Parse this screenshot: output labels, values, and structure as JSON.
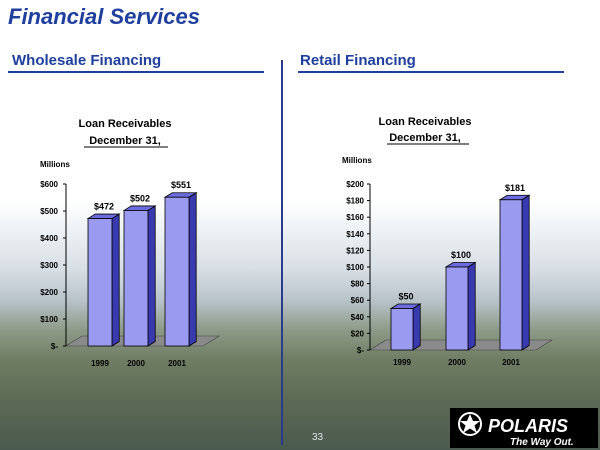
{
  "title": "Financial Services",
  "page_number": "33",
  "logo": {
    "text": "POLARIS",
    "tagline": "The Way Out."
  },
  "sections": [
    {
      "heading": "Wholesale Financing"
    },
    {
      "heading": "Retail Financing"
    }
  ],
  "colors": {
    "title": "#1f3f9f",
    "bar_front": "#9a9af0",
    "bar_side": "#3a3ab0",
    "bar_top": "#6c6ce0",
    "floor": "#8a8a8a"
  },
  "chart_data": [
    {
      "type": "bar",
      "title": "Loan Receivables",
      "subtitle": "December 31,",
      "ylabel": "Millions",
      "categories": [
        "1999",
        "2000",
        "2001"
      ],
      "values": [
        472,
        502,
        551
      ],
      "data_labels": [
        "$472",
        "$502",
        "$551"
      ],
      "ylim": [
        0,
        600
      ],
      "yticks": [
        0,
        100,
        200,
        300,
        400,
        500,
        600
      ],
      "ytick_labels": [
        "$-",
        "$100",
        "$200",
        "$300",
        "$400",
        "$500",
        "$600"
      ],
      "grid": false,
      "style": "3d"
    },
    {
      "type": "bar",
      "title": "Loan Receivables",
      "subtitle": "December 31,",
      "ylabel": "Millions",
      "categories": [
        "1999",
        "2000",
        "2001"
      ],
      "values": [
        50,
        100,
        181
      ],
      "data_labels": [
        "$50",
        "$100",
        "$181"
      ],
      "ylim": [
        0,
        200
      ],
      "yticks": [
        0,
        20,
        40,
        60,
        80,
        100,
        120,
        140,
        160,
        180,
        200
      ],
      "ytick_labels": [
        "$-",
        "$20",
        "$40",
        "$60",
        "$80",
        "$100",
        "$120",
        "$140",
        "$160",
        "$180",
        "$200"
      ],
      "grid": false,
      "style": "3d"
    }
  ]
}
